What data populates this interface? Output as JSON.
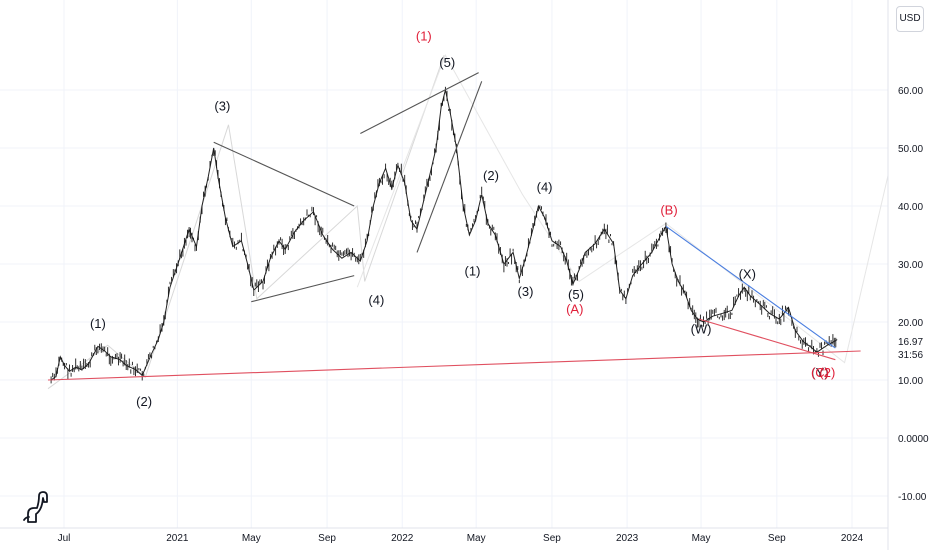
{
  "header": {
    "currency": "USD"
  },
  "chart_data": {
    "type": "line",
    "ylim": [
      -12,
      72
    ],
    "y_ticks": [
      "-10.00",
      "0.0000",
      "10.00",
      "20.00",
      "30.00",
      "40.00",
      "50.00",
      "60.00"
    ],
    "x_ticks": [
      {
        "date": "2020-07-01",
        "label": "Jul"
      },
      {
        "date": "2021-01-01",
        "label": "2021"
      },
      {
        "date": "2021-05-01",
        "label": "May"
      },
      {
        "date": "2021-09-01",
        "label": "Sep"
      },
      {
        "date": "2022-01-01",
        "label": "2022"
      },
      {
        "date": "2022-05-01",
        "label": "May"
      },
      {
        "date": "2022-09-01",
        "label": "Sep"
      },
      {
        "date": "2023-01-01",
        "label": "2023"
      },
      {
        "date": "2023-05-01",
        "label": "May"
      },
      {
        "date": "2023-09-01",
        "label": "Sep"
      },
      {
        "date": "2024-01-01",
        "label": "2024"
      }
    ],
    "last_price": "16.97",
    "countdown": "31:56",
    "series": [
      {
        "values": [
          [
            "2020-06-10",
            10.0
          ],
          [
            "2020-06-18",
            10.6
          ],
          [
            "2020-06-25",
            14.0
          ],
          [
            "2020-07-02",
            12.5
          ],
          [
            "2020-07-10",
            11.5
          ],
          [
            "2020-07-20",
            12.2
          ],
          [
            "2020-07-30",
            11.8
          ],
          [
            "2020-08-10",
            12.8
          ],
          [
            "2020-08-25",
            15.8
          ],
          [
            "2020-09-05",
            15.0
          ],
          [
            "2020-09-15",
            14.0
          ],
          [
            "2020-09-30",
            13.5
          ],
          [
            "2020-10-10",
            12.5
          ],
          [
            "2020-10-25",
            11.8
          ],
          [
            "2020-11-05",
            10.8
          ],
          [
            "2020-11-20",
            14.5
          ],
          [
            "2020-12-01",
            17.0
          ],
          [
            "2020-12-10",
            20.0
          ],
          [
            "2020-12-20",
            26.0
          ],
          [
            "2021-01-05",
            31.0
          ],
          [
            "2021-01-20",
            36.0
          ],
          [
            "2021-02-01",
            33.0
          ],
          [
            "2021-02-10",
            40.0
          ],
          [
            "2021-02-20",
            45.0
          ],
          [
            "2021-03-01",
            50.0
          ],
          [
            "2021-03-08",
            45.0
          ],
          [
            "2021-03-20",
            38.0
          ],
          [
            "2021-04-01",
            33.0
          ],
          [
            "2021-04-15",
            34.0
          ],
          [
            "2021-04-25",
            30.0
          ],
          [
            "2021-05-05",
            25.5
          ],
          [
            "2021-05-20",
            27.0
          ],
          [
            "2021-06-01",
            31.0
          ],
          [
            "2021-06-15",
            34.0
          ],
          [
            "2021-06-25",
            32.5
          ],
          [
            "2021-07-10",
            35.5
          ],
          [
            "2021-07-25",
            37.5
          ],
          [
            "2021-08-10",
            39.0
          ],
          [
            "2021-08-25",
            35.0
          ],
          [
            "2021-09-10",
            32.5
          ],
          [
            "2021-09-25",
            31.0
          ],
          [
            "2021-10-10",
            32.0
          ],
          [
            "2021-10-25",
            30.5
          ],
          [
            "2021-11-05",
            34.0
          ],
          [
            "2021-11-15",
            40.0
          ],
          [
            "2021-11-25",
            44.0
          ],
          [
            "2021-12-05",
            46.5
          ],
          [
            "2021-12-15",
            43.0
          ],
          [
            "2021-12-25",
            47.0
          ],
          [
            "2022-01-05",
            44.0
          ],
          [
            "2022-01-15",
            37.5
          ],
          [
            "2022-01-25",
            36.0
          ],
          [
            "2022-02-05",
            41.0
          ],
          [
            "2022-02-15",
            45.5
          ],
          [
            "2022-02-25",
            50.0
          ],
          [
            "2022-03-05",
            57.0
          ],
          [
            "2022-03-12",
            60.0
          ],
          [
            "2022-03-20",
            56.0
          ],
          [
            "2022-03-30",
            50.0
          ],
          [
            "2022-04-10",
            40.0
          ],
          [
            "2022-04-20",
            35.0
          ],
          [
            "2022-04-30",
            37.5
          ],
          [
            "2022-05-10",
            42.0
          ],
          [
            "2022-05-20",
            37.0
          ],
          [
            "2022-06-01",
            35.0
          ],
          [
            "2022-06-15",
            30.0
          ],
          [
            "2022-06-30",
            32.0
          ],
          [
            "2022-07-10",
            27.5
          ],
          [
            "2022-07-20",
            31.0
          ],
          [
            "2022-08-01",
            36.0
          ],
          [
            "2022-08-10",
            40.0
          ],
          [
            "2022-08-20",
            38.0
          ],
          [
            "2022-09-01",
            34.0
          ],
          [
            "2022-09-15",
            33.0
          ],
          [
            "2022-09-25",
            30.5
          ],
          [
            "2022-10-05",
            26.5
          ],
          [
            "2022-10-15",
            29.0
          ],
          [
            "2022-10-25",
            32.0
          ],
          [
            "2022-11-10",
            33.5
          ],
          [
            "2022-11-25",
            36.0
          ],
          [
            "2022-12-10",
            33.5
          ],
          [
            "2022-12-20",
            25.5
          ],
          [
            "2022-12-30",
            24.0
          ],
          [
            "2023-01-10",
            28.0
          ],
          [
            "2023-01-25",
            30.0
          ],
          [
            "2023-02-10",
            32.0
          ],
          [
            "2023-02-25",
            35.0
          ],
          [
            "2023-03-05",
            36.5
          ],
          [
            "2023-03-15",
            30.0
          ],
          [
            "2023-03-25",
            27.0
          ],
          [
            "2023-04-05",
            25.0
          ],
          [
            "2023-04-15",
            22.0
          ],
          [
            "2023-04-25",
            20.5
          ],
          [
            "2023-05-05",
            20.0
          ],
          [
            "2023-05-20",
            21.0
          ],
          [
            "2023-06-05",
            21.5
          ],
          [
            "2023-06-20",
            22.0
          ],
          [
            "2023-07-01",
            24.5
          ],
          [
            "2023-07-10",
            26.0
          ],
          [
            "2023-07-20",
            24.5
          ],
          [
            "2023-08-05",
            23.0
          ],
          [
            "2023-08-20",
            21.5
          ],
          [
            "2023-09-05",
            20.5
          ],
          [
            "2023-09-20",
            22.5
          ],
          [
            "2023-10-01",
            18.5
          ],
          [
            "2023-10-15",
            16.5
          ],
          [
            "2023-10-25",
            15.8
          ],
          [
            "2023-11-05",
            14.8
          ],
          [
            "2023-11-15",
            15.5
          ],
          [
            "2023-11-25",
            16.2
          ],
          [
            "2023-12-01",
            16.5
          ],
          [
            "2023-12-08",
            16.97
          ]
        ]
      }
    ],
    "trendlines": [
      {
        "color": "#555555",
        "points": [
          [
            "2021-03-01",
            51.0
          ],
          [
            "2021-10-15",
            40.0
          ]
        ]
      },
      {
        "color": "#555555",
        "points": [
          [
            "2021-05-01",
            23.5
          ],
          [
            "2021-10-15",
            28.0
          ]
        ]
      },
      {
        "color": "#555555",
        "points": [
          [
            "2021-10-25",
            52.5
          ],
          [
            "2022-05-05",
            63.0
          ]
        ]
      },
      {
        "color": "#555555",
        "points": [
          [
            "2022-01-25",
            32.0
          ],
          [
            "2022-05-10",
            61.5
          ]
        ]
      },
      {
        "color": "#4a7ee0",
        "points": [
          [
            "2023-03-05",
            36.5
          ],
          [
            "2023-12-05",
            15.5
          ]
        ]
      },
      {
        "color": "#e05060",
        "points": [
          [
            "2023-04-28",
            20.5
          ],
          [
            "2023-12-05",
            13.5
          ]
        ]
      },
      {
        "color": "#e05060",
        "points": [
          [
            "2020-06-05",
            10.0
          ],
          [
            "2024-01-15",
            15.0
          ]
        ]
      }
    ],
    "faint_waves": [
      {
        "color": "#d8d8d8",
        "points": [
          [
            "2020-06-05",
            8.5
          ],
          [
            "2020-09-10",
            16.0
          ],
          [
            "2020-11-10",
            10.5
          ],
          [
            "2021-03-25",
            54.0
          ],
          [
            "2021-05-10",
            24.0
          ],
          [
            "2021-10-20",
            40.0
          ],
          [
            "2021-11-01",
            27.0
          ],
          [
            "2022-03-10",
            66.0
          ]
        ]
      },
      {
        "color": "#e6e6e6",
        "points": [
          [
            "2021-10-20",
            26.0
          ],
          [
            "2022-03-12",
            66.0
          ],
          [
            "2022-07-15",
            42.0
          ],
          [
            "2022-10-15",
            27.0
          ],
          [
            "2023-03-05",
            37.0
          ],
          [
            "2023-12-20",
            13.0
          ],
          [
            "2024-03-01",
            46.0
          ]
        ]
      }
    ],
    "annotations": [
      {
        "id": "w1a",
        "text": "(1)",
        "color": "#131722",
        "date": "2020-08-25",
        "y": 19.0
      },
      {
        "id": "w2a",
        "text": "(2)",
        "color": "#131722",
        "date": "2020-11-08",
        "y": 5.5
      },
      {
        "id": "w3a",
        "text": "(3)",
        "color": "#131722",
        "date": "2021-03-15",
        "y": 56.5
      },
      {
        "id": "w4a",
        "text": "(4)",
        "color": "#131722",
        "date": "2021-11-20",
        "y": 23.0
      },
      {
        "id": "w1red",
        "text": "(1)",
        "color": "#e0203a",
        "date": "2022-02-05",
        "y": 68.5
      },
      {
        "id": "w5b",
        "text": "(5)",
        "color": "#131722",
        "date": "2022-03-15",
        "y": 64.0
      },
      {
        "id": "w1c",
        "text": "(1)",
        "color": "#131722",
        "date": "2022-04-25",
        "y": 28.0
      },
      {
        "id": "w2c",
        "text": "(2)",
        "color": "#131722",
        "date": "2022-05-25",
        "y": 44.5
      },
      {
        "id": "w3c",
        "text": "(3)",
        "color": "#131722",
        "date": "2022-07-20",
        "y": 24.5
      },
      {
        "id": "w4c",
        "text": "(4)",
        "color": "#131722",
        "date": "2022-08-20",
        "y": 42.5
      },
      {
        "id": "w5c",
        "text": "(5)",
        "color": "#131722",
        "date": "2022-10-10",
        "y": 24.0
      },
      {
        "id": "wA",
        "text": "(A)",
        "color": "#e0203a",
        "date": "2022-10-08",
        "y": 21.5
      },
      {
        "id": "wB",
        "text": "(B)",
        "color": "#e0203a",
        "date": "2023-03-10",
        "y": 38.5
      },
      {
        "id": "wW",
        "text": "(W)",
        "color": "#131722",
        "date": "2023-05-01",
        "y": 18.0
      },
      {
        "id": "wX",
        "text": "(X)",
        "color": "#131722",
        "date": "2023-07-15",
        "y": 27.5
      },
      {
        "id": "wY",
        "text": "(Y)",
        "color": "#131722",
        "date": "2023-11-10",
        "y": 10.5
      },
      {
        "id": "wC",
        "text": "(C)",
        "color": "#e0203a",
        "date": "2023-11-10",
        "y": 10.5
      },
      {
        "id": "w2d",
        "text": "(2)",
        "color": "#e0203a",
        "date": "2023-11-22",
        "y": 10.5
      }
    ],
    "grid": true
  }
}
